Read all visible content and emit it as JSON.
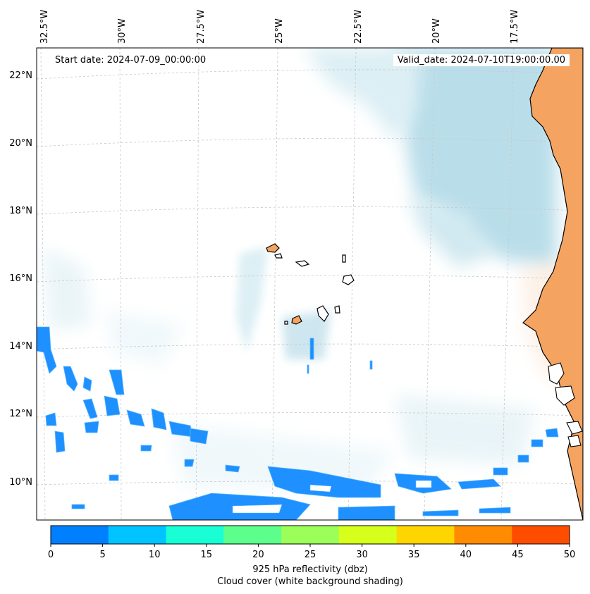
{
  "map": {
    "start_date_label": "Start date: 2024-07-09_00:00:00",
    "valid_date_label": "Valid_date: 2024-07-10T19:00:00.00",
    "lon_labels": [
      "32.5°W",
      "30°W",
      "27.5°W",
      "25°W",
      "22.5°W",
      "20°W",
      "17.5°W"
    ],
    "lat_labels": [
      "22°N",
      "20°N",
      "18°N",
      "16°N",
      "14°N",
      "12°N",
      "10°N"
    ],
    "colorbar": {
      "ticks": [
        "0",
        "5",
        "10",
        "15",
        "20",
        "25",
        "30",
        "35",
        "40",
        "45",
        "50"
      ],
      "colors": [
        "#0080ff",
        "#00c4ff",
        "#19ffd5",
        "#5cff8c",
        "#9cff59",
        "#d6ff1c",
        "#ffd500",
        "#ff8c00",
        "#ff4d00"
      ],
      "label_line1": "925 hPa reflectivity (dbz)",
      "label_line2": "Cloud cover (white background shading)"
    },
    "land_color": "#f4a460",
    "cloud_color": "#add8e6",
    "reflectivity_color": "#1e90ff"
  }
}
